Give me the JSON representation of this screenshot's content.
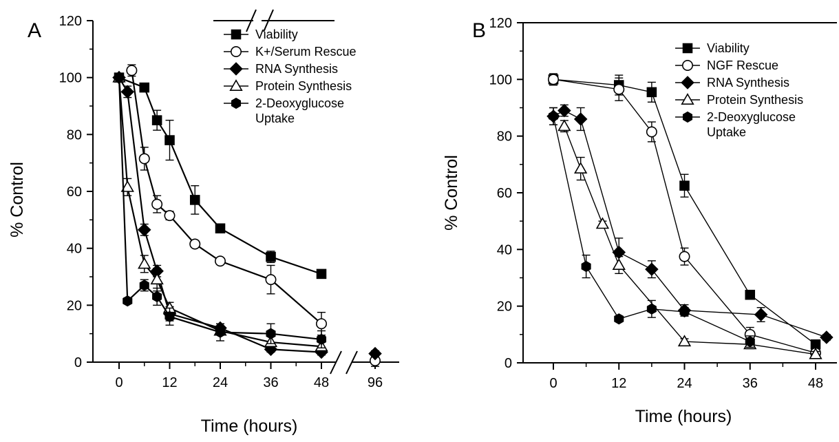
{
  "chart_data": [
    {
      "type": "line",
      "panel_label": "A",
      "xlabel": "Time (hours)",
      "ylabel": "% Control",
      "ylim": [
        0,
        120
      ],
      "y_ticks": [
        0,
        20,
        40,
        60,
        80,
        100,
        120
      ],
      "x_ticks": [
        0,
        12,
        24,
        36,
        48,
        96
      ],
      "x_axis_break": {
        "between": [
          48,
          96
        ]
      },
      "grid": false,
      "legend_position": "top-right",
      "series": [
        {
          "name": "Viability",
          "marker": "square",
          "filled": true,
          "x": [
            0,
            6,
            9,
            12,
            18,
            24,
            36,
            48
          ],
          "y": [
            100,
            96.5,
            85,
            78,
            57,
            47,
            37,
            31
          ],
          "err": [
            0,
            1.5,
            3.5,
            7,
            5,
            1.5,
            2,
            1.5
          ]
        },
        {
          "name": "K+/Serum Rescue",
          "marker": "circle",
          "filled": false,
          "x": [
            3,
            6,
            9,
            12,
            18,
            24,
            36,
            48,
            96
          ],
          "y": [
            102.5,
            71.5,
            55.5,
            51.5,
            41.5,
            35.5,
            29,
            13.5,
            0.5
          ],
          "err": [
            2,
            4,
            3,
            1.5,
            1,
            1,
            5,
            4,
            2
          ]
        },
        {
          "name": "RNA Synthesis",
          "marker": "diamond",
          "filled": true,
          "x": [
            0,
            2,
            6,
            9,
            12,
            24,
            36,
            48,
            96
          ],
          "y": [
            100,
            95,
            46.5,
            32,
            17,
            12,
            4.5,
            3.5,
            3
          ],
          "err": [
            0,
            2,
            2,
            2,
            2.5,
            1.5,
            1,
            1,
            1
          ]
        },
        {
          "name": "Protein Synthesis",
          "marker": "triangle",
          "filled": false,
          "x": [
            0,
            2,
            6,
            9,
            12,
            24,
            36,
            48
          ],
          "y": [
            100,
            61.5,
            34.5,
            29,
            19,
            11,
            7,
            5.5
          ],
          "err": [
            0,
            3,
            3,
            4,
            2,
            1.5,
            2,
            1.5
          ]
        },
        {
          "name": "2-Deoxyglucose Uptake",
          "marker": "hexagon",
          "filled": true,
          "x": [
            0,
            2,
            6,
            9,
            12,
            24,
            36,
            48
          ],
          "y": [
            100,
            21.5,
            27,
            23,
            16,
            10.5,
            10,
            8
          ],
          "err": [
            0,
            1,
            2,
            3,
            3,
            3,
            3.5,
            3
          ]
        }
      ]
    },
    {
      "type": "line",
      "panel_label": "B",
      "xlabel": "Time (hours)",
      "ylabel": "% Control",
      "ylim": [
        0,
        120
      ],
      "y_ticks": [
        0,
        20,
        40,
        60,
        80,
        100,
        120
      ],
      "x_ticks": [
        0,
        12,
        24,
        36,
        48
      ],
      "grid": false,
      "legend_position": "top-right",
      "series": [
        {
          "name": "Viability",
          "marker": "square",
          "filled": true,
          "x": [
            0,
            12,
            18,
            24,
            36,
            48
          ],
          "y": [
            100,
            98,
            95.5,
            62.5,
            24,
            6.5
          ],
          "err": [
            2,
            3.5,
            3.5,
            4,
            1.5,
            1
          ]
        },
        {
          "name": "NGF Rescue",
          "marker": "circle",
          "filled": false,
          "x": [
            0,
            12,
            18,
            24,
            36,
            48
          ],
          "y": [
            100,
            96.5,
            81.5,
            37.5,
            10,
            3.5
          ],
          "err": [
            2,
            4,
            3.5,
            3,
            2.5,
            1
          ]
        },
        {
          "name": "RNA Synthesis",
          "marker": "diamond",
          "filled": true,
          "x": [
            0,
            2,
            5,
            12,
            18,
            24,
            38,
            50
          ],
          "y": [
            87,
            89,
            86,
            39,
            33,
            18.5,
            17,
            9
          ],
          "err": [
            3,
            2,
            4,
            5,
            3,
            2,
            2.5,
            1
          ]
        },
        {
          "name": "Protein Synthesis",
          "marker": "triangle",
          "filled": false,
          "x": [
            2,
            5,
            9,
            12,
            24,
            36,
            48
          ],
          "y": [
            83.5,
            68.5,
            49,
            34.5,
            7.5,
            6.5,
            3
          ],
          "err": [
            2,
            4,
            1,
            3,
            1,
            1.5,
            1
          ]
        },
        {
          "name": "2-Deoxyglucose Uptake",
          "marker": "hexagon",
          "filled": true,
          "x": [
            0,
            6,
            12,
            18,
            24,
            36
          ],
          "y": [
            87,
            34,
            15.5,
            19,
            18,
            7.5
          ],
          "err": [
            3,
            4,
            1,
            3,
            1.5,
            2
          ]
        }
      ]
    }
  ]
}
